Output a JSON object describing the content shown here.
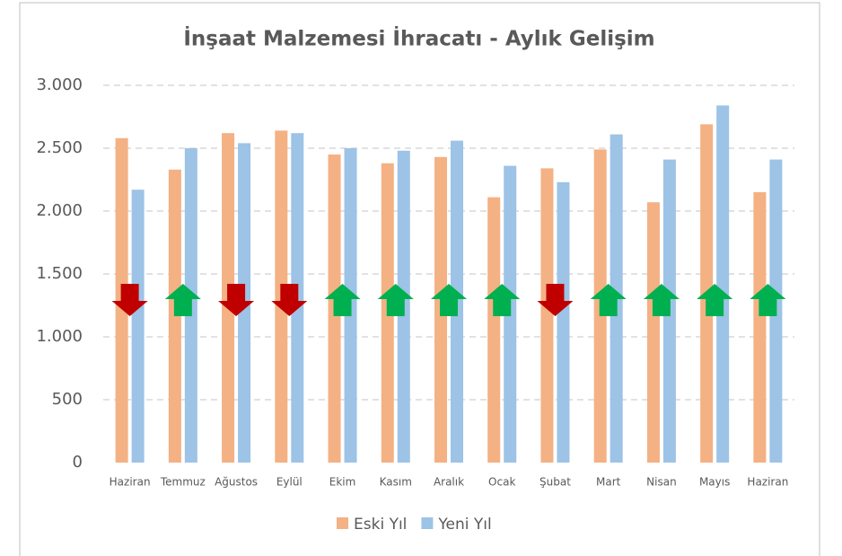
{
  "chart_data": {
    "type": "bar",
    "title": "İnşaat Malzemesi İhracatı - Aylık Gelişim",
    "categories": [
      "Haziran",
      "Temmuz",
      "Ağustos",
      "Eylül",
      "Ekim",
      "Kasım",
      "Aralık",
      "Ocak",
      "Şubat",
      "Mart",
      "Nisan",
      "Mayıs",
      "Haziran"
    ],
    "series": [
      {
        "name": "Eski Yıl",
        "color": "#f4b183",
        "values": [
          2580,
          2330,
          2620,
          2640,
          2450,
          2380,
          2430,
          2110,
          2340,
          2490,
          2070,
          2690,
          2150
        ]
      },
      {
        "name": "Yeni Yıl",
        "color": "#9dc3e6",
        "values": [
          2170,
          2500,
          2540,
          2620,
          2500,
          2480,
          2560,
          2360,
          2230,
          2610,
          2410,
          2840,
          2410
        ]
      }
    ],
    "ylim": [
      0,
      3000
    ],
    "yticks": [
      0,
      500,
      {
        "value": 1000,
        "label": "1.000"
      },
      {
        "value": 1500,
        "label": "1.500"
      },
      {
        "value": 2000,
        "label": "2.000"
      },
      {
        "value": 2500,
        "label": "2.500"
      },
      {
        "value": 3000,
        "label": "3.000"
      }
    ],
    "grid": true,
    "legend": "bottom",
    "up_color": "#00b050",
    "down_color": "#c00000"
  }
}
